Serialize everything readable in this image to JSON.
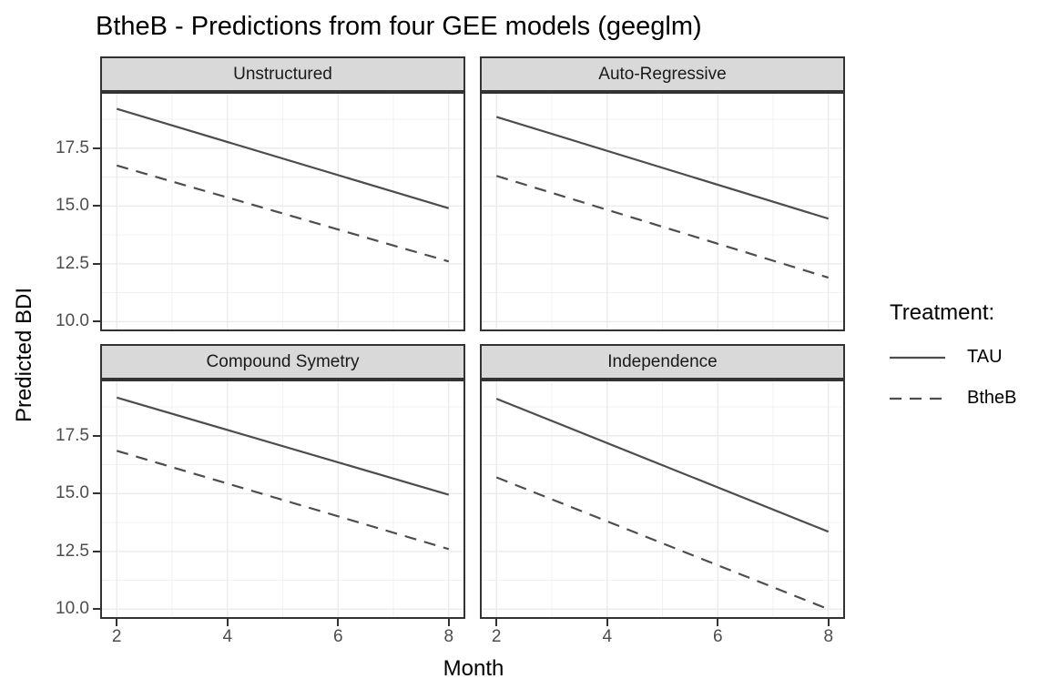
{
  "title": "BtheB - Predictions from four GEE models (geeglm)",
  "axes": {
    "x_label": "Month",
    "y_label": "Predicted BDI"
  },
  "legend": {
    "title": "Treatment:",
    "position": "right",
    "items": [
      {
        "label": "TAU",
        "linetype": "solid"
      },
      {
        "label": "BtheB",
        "linetype": "dashed"
      }
    ]
  },
  "chart_data": {
    "type": "line",
    "title": "BtheB - Predictions from four GEE models (geeglm)",
    "xlabel": "Month",
    "ylabel": "Predicted BDI",
    "x": [
      2,
      8
    ],
    "xlim": [
      1.7,
      8.3
    ],
    "ylim": [
      9.58,
      19.93
    ],
    "x_ticks": [
      2,
      4,
      6,
      8
    ],
    "x_tick_labels": [
      "2",
      "4",
      "6",
      "8"
    ],
    "y_ticks": [
      17.5,
      15.0,
      12.5,
      10.0
    ],
    "y_tick_labels": [
      "17.5",
      "15.0",
      "12.5",
      "10.0"
    ],
    "x_minor": [
      3,
      5,
      7
    ],
    "y_minor": [
      18.75,
      16.25,
      13.75,
      11.25
    ],
    "grid": true,
    "legend_position": "right",
    "facets": [
      {
        "label": "Unstructured",
        "series": [
          {
            "name": "TAU",
            "linetype": "solid",
            "values": [
              19.2,
              14.9
            ]
          },
          {
            "name": "BtheB",
            "linetype": "dashed",
            "values": [
              16.75,
              12.6
            ]
          }
        ]
      },
      {
        "label": "Auto-Regressive",
        "series": [
          {
            "name": "TAU",
            "linetype": "solid",
            "values": [
              18.85,
              14.45
            ]
          },
          {
            "name": "BtheB",
            "linetype": "dashed",
            "values": [
              16.3,
              11.9
            ]
          }
        ]
      },
      {
        "label": "Compound Symetry",
        "series": [
          {
            "name": "TAU",
            "linetype": "solid",
            "values": [
              19.15,
              14.95
            ]
          },
          {
            "name": "BtheB",
            "linetype": "dashed",
            "values": [
              16.85,
              12.6
            ]
          }
        ]
      },
      {
        "label": "Independence",
        "series": [
          {
            "name": "TAU",
            "linetype": "solid",
            "values": [
              19.1,
              13.35
            ]
          },
          {
            "name": "BtheB",
            "linetype": "dashed",
            "values": [
              15.7,
              10.0
            ]
          }
        ]
      }
    ]
  },
  "colors": {
    "line": "#4d4d4d",
    "grid_major": "#ebebeb",
    "grid_minor": "#ebebeb",
    "strip_bg": "#d9d9d9",
    "panel_border": "#333333",
    "tick_text": "#4d4d4d",
    "title_text": "#000000"
  }
}
